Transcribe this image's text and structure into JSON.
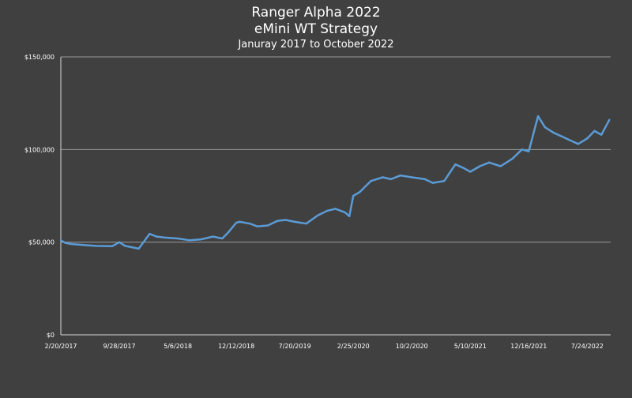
{
  "colors": {
    "background": "#404040",
    "line": "#5b9bd5",
    "axis": "#d9d9d9",
    "grid": "#9a9a9a",
    "text": "#ffffff"
  },
  "chart_data": {
    "type": "line",
    "title": "Ranger Alpha 2022",
    "subtitle": "eMini WT Strategy",
    "subtitle2": "Januray 2017 to October 2022",
    "xlabel": "",
    "ylabel": "",
    "ylim": [
      0,
      150000
    ],
    "grid": true,
    "legend": "none",
    "y_ticks": [
      {
        "value": 0,
        "label": "$0"
      },
      {
        "value": 50000,
        "label": "$50,000"
      },
      {
        "value": 100000,
        "label": "$100,000"
      },
      {
        "value": 150000,
        "label": "$150,000"
      }
    ],
    "x_ticks": [
      "2/20/2017",
      "9/28/2017",
      "5/6/2018",
      "12/12/2018",
      "7/20/2019",
      "2/25/2020",
      "10/2/2020",
      "5/10/2021",
      "12/16/2021",
      "7/24/2022"
    ],
    "series": [
      {
        "name": "",
        "x": [
          "2/20/2017",
          "3/10/2017",
          "4/1/2017",
          "5/15/2017",
          "7/1/2017",
          "9/1/2017",
          "9/28/2017",
          "10/20/2017",
          "12/10/2017",
          "1/20/2018",
          "2/15/2018",
          "3/15/2018",
          "5/6/2018",
          "6/20/2018",
          "8/1/2018",
          "9/15/2018",
          "10/20/2018",
          "11/10/2018",
          "12/12/2018",
          "12/25/2018",
          "2/1/2019",
          "3/1/2019",
          "4/10/2019",
          "5/15/2019",
          "6/15/2019",
          "7/20/2019",
          "9/1/2019",
          "10/15/2019",
          "11/20/2019",
          "12/20/2019",
          "1/25/2020",
          "2/10/2020",
          "2/25/2020",
          "3/20/2020",
          "5/1/2020",
          "6/15/2020",
          "7/15/2020",
          "8/20/2020",
          "10/2/2020",
          "11/20/2020",
          "12/20/2020",
          "2/1/2021",
          "3/15/2021",
          "4/15/2021",
          "5/10/2021",
          "6/15/2021",
          "7/20/2021",
          "9/1/2021",
          "10/15/2021",
          "11/20/2021",
          "12/16/2021",
          "1/5/2022",
          "1/20/2022",
          "2/15/2022",
          "3/20/2022",
          "4/20/2022",
          "5/20/2022",
          "6/20/2022",
          "7/24/2022",
          "8/20/2022",
          "9/15/2022",
          "10/15/2022"
        ],
        "values": [
          51000,
          49500,
          49000,
          48500,
          48000,
          47800,
          50000,
          48000,
          46500,
          54500,
          53000,
          52500,
          52000,
          51000,
          51500,
          53000,
          52000,
          55000,
          60500,
          61000,
          60000,
          58500,
          59000,
          61500,
          62000,
          61000,
          60000,
          64500,
          67000,
          68000,
          66000,
          64000,
          75000,
          77000,
          83000,
          85000,
          84000,
          86000,
          85000,
          84000,
          82000,
          83000,
          92000,
          90000,
          88000,
          91000,
          93000,
          91000,
          95000,
          100000,
          99000,
          110000,
          118000,
          112000,
          109000,
          107000,
          105000,
          103000,
          106000,
          110000,
          108000,
          116000
        ]
      }
    ]
  }
}
